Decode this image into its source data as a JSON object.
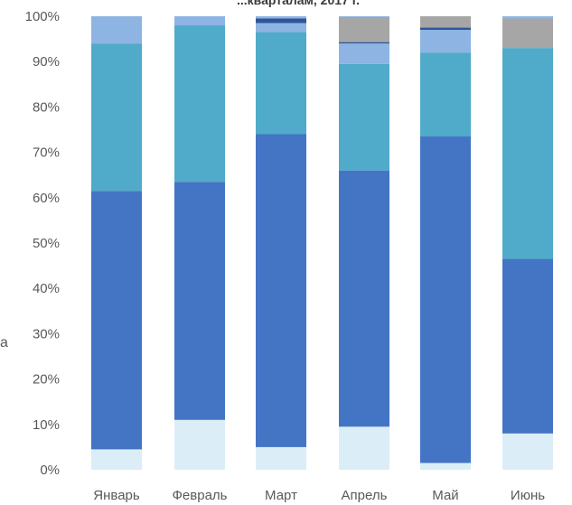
{
  "chart_data": {
    "type": "bar",
    "stacked": true,
    "percent_stacked": true,
    "title": "...кварталам, 2017 г.",
    "categories": [
      "Январь",
      "Февраль",
      "Март",
      "Апрель",
      "Май",
      "Июнь"
    ],
    "y_ticks": [
      "0%",
      "10%",
      "20%",
      "30%",
      "40%",
      "50%",
      "60%",
      "70%",
      "80%",
      "90%",
      "100%"
    ],
    "ylim": [
      0,
      100
    ],
    "grid": false,
    "legend": "none",
    "series": [
      {
        "color": "#dbeef7",
        "values": [
          4.5,
          11,
          5,
          9.5,
          1.5,
          8
        ]
      },
      {
        "color": "#4474c4",
        "values": [
          57,
          52.5,
          69,
          56.5,
          72,
          38.5
        ]
      },
      {
        "color": "#4fabc9",
        "values": [
          32.5,
          34.5,
          22.5,
          23.5,
          18.5,
          46.5
        ]
      },
      {
        "color": "#8eb4e3",
        "values": [
          4.5,
          1,
          2,
          4.5,
          5,
          0
        ]
      },
      {
        "color": "#2f5597",
        "values": [
          0,
          0,
          1,
          0.3,
          0.5,
          0
        ]
      },
      {
        "color": "#a6a6a6",
        "values": [
          0,
          0,
          0,
          5.5,
          2.5,
          6.5
        ]
      },
      {
        "color": "#8eb4e3",
        "values": [
          1.5,
          1,
          0.5,
          0.2,
          0,
          0.5
        ]
      }
    ]
  },
  "stray_label": "а"
}
